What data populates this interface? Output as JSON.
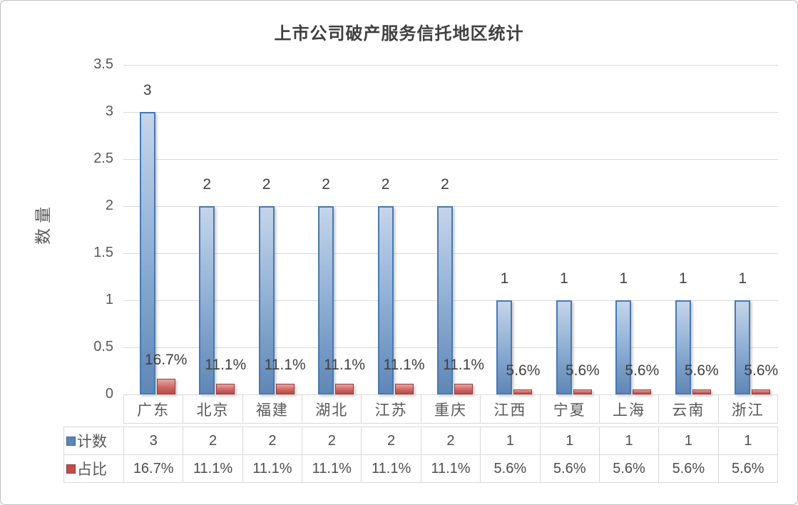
{
  "chart_data": {
    "type": "bar",
    "title": "上市公司破产服务信托地区统计",
    "xlabel": "",
    "ylabel": "数量",
    "categories": [
      "广东",
      "北京",
      "福建",
      "湖北",
      "江苏",
      "重庆",
      "江西",
      "宁夏",
      "上海",
      "云南",
      "浙江"
    ],
    "series": [
      {
        "name": "计数",
        "values": [
          3,
          2,
          2,
          2,
          2,
          2,
          1,
          1,
          1,
          1,
          1
        ],
        "labels": [
          "3",
          "2",
          "2",
          "2",
          "2",
          "2",
          "1",
          "1",
          "1",
          "1",
          "1"
        ],
        "unit": "count",
        "fill_top": "#c5d5ea",
        "fill_mid": "#94b3d7",
        "fill_bottom": "#5f87b6",
        "border": "#4678b4"
      },
      {
        "name": "占比",
        "values": [
          16.7,
          11.1,
          11.1,
          11.1,
          11.1,
          11.1,
          5.6,
          5.6,
          5.6,
          5.6,
          5.6
        ],
        "labels": [
          "16.7%",
          "11.1%",
          "11.1%",
          "11.1%",
          "11.1%",
          "11.1%",
          "5.6%",
          "5.6%",
          "5.6%",
          "5.6%",
          "5.6%"
        ],
        "unit": "percent",
        "fill_top": "#e0a8a6",
        "fill_mid": "#cd6764",
        "fill_bottom": "#bc4845",
        "border": "#9f3a37"
      }
    ],
    "ylim": [
      0,
      3.5
    ],
    "yticks": [
      0,
      0.5,
      1,
      1.5,
      2,
      2.5,
      3,
      3.5
    ],
    "ytick_labels": [
      "0",
      "0.5",
      "1",
      "1.5",
      "2",
      "2.5",
      "3",
      "3.5"
    ],
    "grid": true,
    "legend_position": "data-table-left"
  },
  "data_table": {
    "rows": [
      {
        "label": "计数",
        "swatch_fill": "#5b84b8",
        "swatch_border": "#41699c",
        "values": [
          "3",
          "2",
          "2",
          "2",
          "2",
          "2",
          "1",
          "1",
          "1",
          "1",
          "1"
        ]
      },
      {
        "label": "占比",
        "swatch_fill": "#bf4f4c",
        "swatch_border": "#943634",
        "values": [
          "16.7%",
          "11.1%",
          "11.1%",
          "11.1%",
          "11.1%",
          "11.1%",
          "5.6%",
          "5.6%",
          "5.6%",
          "5.6%",
          "5.6%"
        ]
      }
    ]
  },
  "colors": {
    "background": "#ffffff",
    "gridline": "#d9d9d9",
    "table_border": "#d9d9d9",
    "axis_text": "#595959",
    "label_text": "#404040",
    "title_text": "#404040",
    "outer_border": "#c0c0c0"
  }
}
